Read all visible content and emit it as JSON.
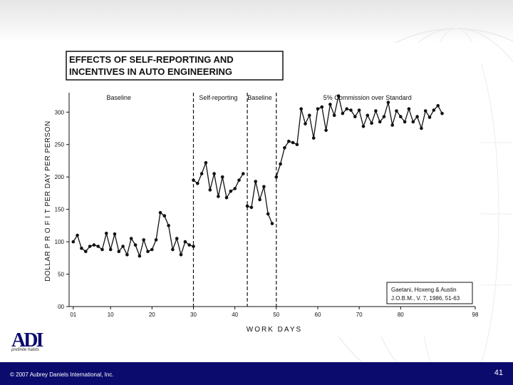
{
  "slide": {
    "copyright": "© 2007 Aubrey Daniels International, Inc.",
    "page_number": "41",
    "logo_text": "ADI",
    "logo_tagline": "prefinite habits",
    "colors": {
      "footer": "#0b0b6e",
      "logo": "#0b0b6e"
    }
  },
  "chart_data": {
    "type": "line",
    "title_line1": "EFFECTS OF SELF-REPORTING AND",
    "title_line2": "INCENTIVES IN AUTO ENGINEERING",
    "xlabel": "WORK DAYS",
    "ylabel": "DOLLAR  P R O F I T PER DAY PER PERSON",
    "xlim": [
      0,
      98
    ],
    "ylim": [
      0,
      330
    ],
    "xticks": [
      {
        "v": 1,
        "label": "01"
      },
      {
        "v": 10,
        "label": "10"
      },
      {
        "v": 20,
        "label": "20"
      },
      {
        "v": 30,
        "label": "30"
      },
      {
        "v": 40,
        "label": "40"
      },
      {
        "v": 50,
        "label": "50"
      },
      {
        "v": 60,
        "label": "60"
      },
      {
        "v": 70,
        "label": "70"
      },
      {
        "v": 80,
        "label": "80"
      },
      {
        "v": 98,
        "label": "98"
      }
    ],
    "yticks": [
      {
        "v": 0,
        "label": "00"
      },
      {
        "v": 50,
        "label": "50"
      },
      {
        "v": 100,
        "label": "100"
      },
      {
        "v": 150,
        "label": "150"
      },
      {
        "v": 200,
        "label": "200"
      },
      {
        "v": 250,
        "label": "250"
      },
      {
        "v": 300,
        "label": "300"
      }
    ],
    "phase_lines": [
      30,
      43,
      50
    ],
    "phases": [
      {
        "label": "Baseline",
        "x": 12
      },
      {
        "label": "Self-reporting",
        "x": 36
      },
      {
        "label": "Baseline",
        "x": 46
      },
      {
        "label": "5% Commission over Standard",
        "x": 72
      }
    ],
    "citation_line1": "Gaetani, Hoxeng & Austin",
    "citation_line2": "J.O.B.M., V. 7, 1986, 51-63",
    "segments": [
      {
        "points": [
          [
            1,
            100
          ],
          [
            2,
            110
          ],
          [
            3,
            90
          ],
          [
            4,
            85
          ],
          [
            5,
            93
          ],
          [
            6,
            95
          ],
          [
            7,
            93
          ],
          [
            8,
            88
          ],
          [
            9,
            113
          ],
          [
            10,
            88
          ],
          [
            11,
            112
          ],
          [
            12,
            85
          ],
          [
            13,
            93
          ],
          [
            14,
            80
          ],
          [
            15,
            105
          ],
          [
            16,
            95
          ],
          [
            17,
            78
          ],
          [
            18,
            103
          ],
          [
            19,
            85
          ],
          [
            20,
            88
          ],
          [
            21,
            103
          ],
          [
            22,
            145
          ],
          [
            23,
            140
          ],
          [
            24,
            125
          ],
          [
            25,
            88
          ],
          [
            26,
            105
          ],
          [
            27,
            80
          ],
          [
            28,
            100
          ],
          [
            29,
            95
          ],
          [
            30,
            93
          ]
        ]
      },
      {
        "points": [
          [
            30,
            195
          ],
          [
            31,
            190
          ],
          [
            32,
            205
          ],
          [
            33,
            222
          ],
          [
            34,
            180
          ],
          [
            35,
            205
          ],
          [
            36,
            170
          ],
          [
            37,
            200
          ],
          [
            38,
            168
          ],
          [
            39,
            178
          ],
          [
            40,
            182
          ],
          [
            41,
            195
          ],
          [
            42,
            205
          ]
        ]
      },
      {
        "points": [
          [
            43,
            155
          ],
          [
            44,
            153
          ],
          [
            45,
            193
          ],
          [
            46,
            165
          ],
          [
            47,
            185
          ],
          [
            48,
            143
          ],
          [
            49,
            128
          ]
        ]
      },
      {
        "points": [
          [
            50,
            200
          ],
          [
            51,
            220
          ],
          [
            52,
            245
          ],
          [
            53,
            255
          ],
          [
            54,
            253
          ],
          [
            55,
            250
          ],
          [
            56,
            305
          ],
          [
            57,
            282
          ],
          [
            58,
            295
          ],
          [
            59,
            260
          ],
          [
            60,
            305
          ],
          [
            61,
            308
          ],
          [
            62,
            272
          ],
          [
            63,
            312
          ],
          [
            64,
            295
          ],
          [
            65,
            325
          ],
          [
            66,
            298
          ],
          [
            67,
            305
          ],
          [
            68,
            303
          ],
          [
            69,
            293
          ],
          [
            70,
            303
          ],
          [
            71,
            278
          ],
          [
            72,
            295
          ],
          [
            73,
            283
          ],
          [
            74,
            302
          ],
          [
            75,
            285
          ],
          [
            76,
            293
          ],
          [
            77,
            315
          ],
          [
            78,
            280
          ],
          [
            79,
            302
          ],
          [
            80,
            293
          ],
          [
            81,
            285
          ],
          [
            82,
            305
          ],
          [
            83,
            285
          ],
          [
            84,
            293
          ],
          [
            85,
            275
          ],
          [
            86,
            302
          ],
          [
            87,
            292
          ],
          [
            88,
            303
          ],
          [
            89,
            310
          ],
          [
            90,
            298
          ]
        ]
      }
    ]
  }
}
